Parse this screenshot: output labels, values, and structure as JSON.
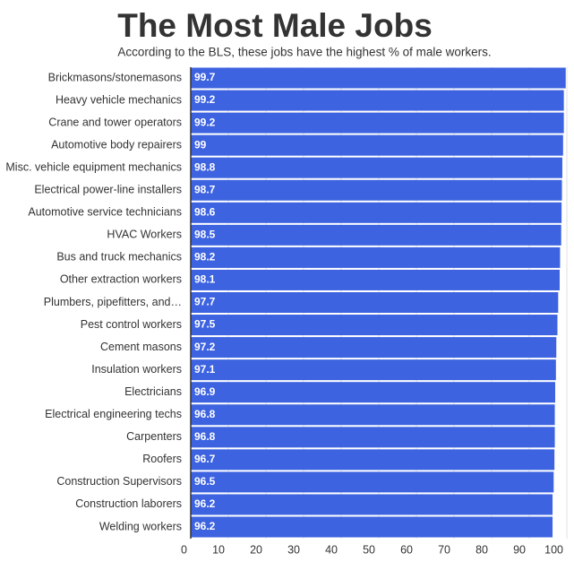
{
  "chart_data": {
    "type": "bar",
    "orientation": "horizontal",
    "title": "The Most Male Jobs",
    "subtitle": "According to the BLS, these jobs have the highest % of male workers.",
    "categories": [
      "Brickmasons/stonemasons",
      "Heavy vehicle mechanics",
      "Crane and tower operators",
      "Automotive body repairers",
      "Misc. vehicle equipment mechanics",
      "Electrical power-line installers",
      "Automotive service technicians",
      "HVAC Workers",
      "Bus and truck mechanics",
      "Other extraction workers",
      "Plumbers, pipefitters, and…",
      "Pest control workers",
      "Cement masons",
      "Insulation workers",
      "Electricians",
      "Electrical engineering techs",
      "Carpenters",
      "Roofers",
      "Construction Supervisors",
      "Construction laborers",
      "Welding workers"
    ],
    "values": [
      99.7,
      99.2,
      99.2,
      99,
      98.8,
      98.7,
      98.6,
      98.5,
      98.2,
      98.1,
      97.7,
      97.5,
      97.2,
      97.1,
      96.9,
      96.8,
      96.8,
      96.7,
      96.5,
      96.2,
      96.2
    ],
    "color": "#3d63e0",
    "xlim": [
      0,
      100
    ],
    "xticks": [
      0,
      10,
      20,
      30,
      40,
      50,
      60,
      70,
      80,
      90,
      100
    ],
    "grid": true
  }
}
